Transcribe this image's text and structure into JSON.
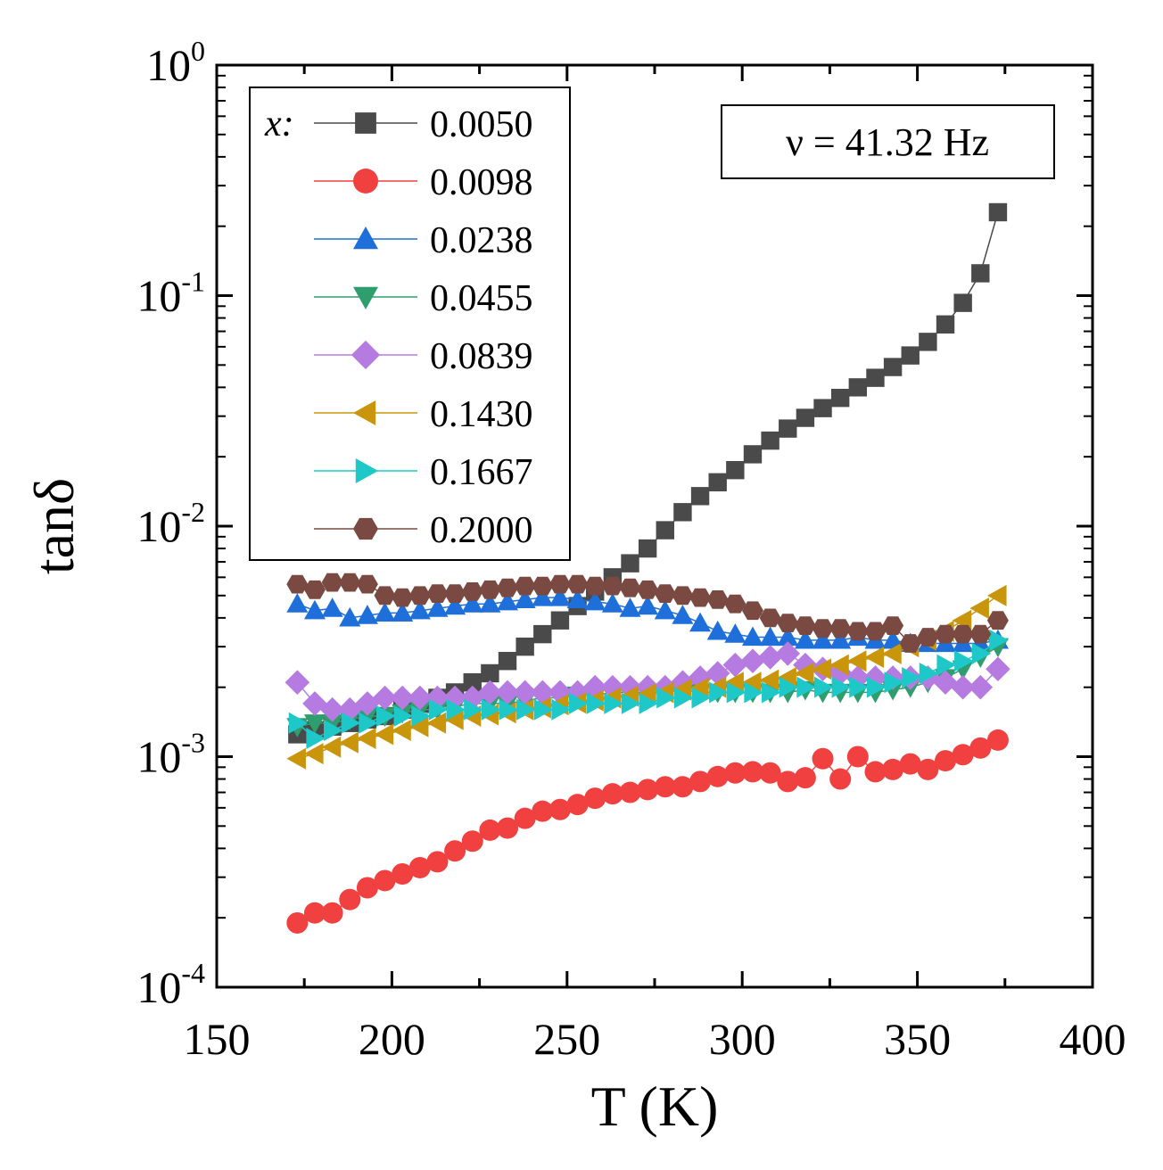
{
  "chart_data": {
    "type": "scatter",
    "title": "",
    "xlabel": "T  (K)",
    "ylabel": "tanδ",
    "xlim": [
      150,
      400
    ],
    "ylim": [
      0.0001,
      1
    ],
    "yscale": "log",
    "x_ticks": [
      "150",
      "200",
      "250",
      "300",
      "350",
      "400"
    ],
    "y_ticks": [
      {
        "base": "10",
        "exp": "-4"
      },
      {
        "base": "10",
        "exp": "-3"
      },
      {
        "base": "10",
        "exp": "-2"
      },
      {
        "base": "10",
        "exp": "-1"
      },
      {
        "base": "10",
        "exp": "0"
      }
    ],
    "legend_title": "x:",
    "legend_position": "top-left",
    "annotation": "ν = 41.32 Hz",
    "series": [
      {
        "name": "0.0050",
        "color": "#4a4a4a",
        "marker": "square",
        "x": [
          173,
          178,
          183,
          188,
          193,
          198,
          203,
          208,
          213,
          218,
          223,
          228,
          233,
          238,
          243,
          248,
          253,
          258,
          263,
          268,
          273,
          278,
          283,
          288,
          293,
          298,
          303,
          308,
          313,
          318,
          323,
          328,
          333,
          338,
          343,
          348,
          353,
          358,
          363,
          368,
          373
        ],
        "y": [
          0.00125,
          0.0013,
          0.00135,
          0.0014,
          0.00145,
          0.0015,
          0.0016,
          0.0017,
          0.0018,
          0.0019,
          0.0021,
          0.0023,
          0.0026,
          0.003,
          0.0034,
          0.0039,
          0.0045,
          0.0052,
          0.006,
          0.0069,
          0.008,
          0.0096,
          0.0115,
          0.0135,
          0.0155,
          0.0175,
          0.0205,
          0.0235,
          0.0265,
          0.0295,
          0.0325,
          0.036,
          0.04,
          0.044,
          0.049,
          0.055,
          0.063,
          0.075,
          0.093,
          0.125,
          0.23
        ]
      },
      {
        "name": "0.0098",
        "color": "#f04040",
        "marker": "circle",
        "x": [
          173,
          178,
          183,
          188,
          193,
          198,
          203,
          208,
          213,
          218,
          223,
          228,
          233,
          238,
          243,
          248,
          253,
          258,
          263,
          268,
          273,
          278,
          283,
          288,
          293,
          298,
          303,
          308,
          313,
          318,
          323,
          328,
          333,
          338,
          343,
          348,
          353,
          358,
          363,
          368,
          373
        ],
        "y": [
          0.00019,
          0.00021,
          0.00021,
          0.00024,
          0.00027,
          0.00029,
          0.00031,
          0.00033,
          0.00035,
          0.00039,
          0.00043,
          0.00048,
          0.00049,
          0.00054,
          0.00058,
          0.00059,
          0.00062,
          0.00066,
          0.00069,
          0.0007,
          0.00072,
          0.00074,
          0.00074,
          0.00078,
          0.00082,
          0.00085,
          0.00086,
          0.00085,
          0.00078,
          0.00081,
          0.00098,
          0.0008,
          0.001,
          0.00086,
          0.00088,
          0.00093,
          0.00088,
          0.00096,
          0.00102,
          0.00109,
          0.00118
        ]
      },
      {
        "name": "0.0238",
        "color": "#1e6fd9",
        "marker": "triangle-up",
        "x": [
          173,
          178,
          183,
          188,
          193,
          198,
          203,
          208,
          213,
          218,
          223,
          228,
          233,
          238,
          243,
          248,
          253,
          258,
          263,
          268,
          273,
          278,
          283,
          288,
          293,
          298,
          303,
          308,
          313,
          318,
          323,
          328,
          333,
          338,
          343,
          348,
          353,
          358,
          363,
          368,
          373
        ],
        "y": [
          0.0046,
          0.0043,
          0.0044,
          0.004,
          0.0041,
          0.0042,
          0.0042,
          0.0043,
          0.0044,
          0.0045,
          0.0046,
          0.0046,
          0.0047,
          0.0048,
          0.0049,
          0.0049,
          0.0048,
          0.0047,
          0.0046,
          0.0044,
          0.0045,
          0.0043,
          0.0041,
          0.0038,
          0.0035,
          0.0034,
          0.0033,
          0.0033,
          0.0033,
          0.0032,
          0.0032,
          0.0032,
          0.0033,
          0.0032,
          0.0032,
          0.0031,
          0.0031,
          0.0031,
          0.0031,
          0.0031,
          0.0032
        ]
      },
      {
        "name": "0.0455",
        "color": "#2e9e6e",
        "marker": "triangle-down",
        "x": [
          173,
          178,
          183,
          188,
          193,
          198,
          203,
          208,
          213,
          218,
          223,
          228,
          233,
          238,
          243,
          248,
          253,
          258,
          263,
          268,
          273,
          278,
          283,
          288,
          293,
          298,
          303,
          308,
          313,
          318,
          323,
          328,
          333,
          338,
          343,
          348,
          353,
          358,
          363,
          368,
          373
        ],
        "y": [
          0.00135,
          0.0014,
          0.0014,
          0.00145,
          0.0015,
          0.0015,
          0.00155,
          0.0016,
          0.0016,
          0.00165,
          0.0017,
          0.0017,
          0.0017,
          0.00175,
          0.0018,
          0.0018,
          0.00185,
          0.00185,
          0.0019,
          0.0019,
          0.0019,
          0.0019,
          0.00195,
          0.0019,
          0.0019,
          0.0019,
          0.0019,
          0.0019,
          0.0019,
          0.00195,
          0.0019,
          0.0019,
          0.0019,
          0.0019,
          0.00195,
          0.002,
          0.0021,
          0.0022,
          0.0024,
          0.0027,
          0.003
        ]
      },
      {
        "name": "0.0839",
        "color": "#b57be0",
        "marker": "diamond",
        "x": [
          173,
          178,
          183,
          188,
          193,
          198,
          203,
          208,
          213,
          218,
          223,
          228,
          233,
          238,
          243,
          248,
          253,
          258,
          263,
          268,
          273,
          278,
          283,
          288,
          293,
          298,
          303,
          308,
          313,
          318,
          323,
          328,
          333,
          338,
          343,
          348,
          353,
          358,
          363,
          368,
          373
        ],
        "y": [
          0.0021,
          0.0017,
          0.0016,
          0.0016,
          0.0017,
          0.0018,
          0.0018,
          0.0018,
          0.0018,
          0.0018,
          0.0018,
          0.0019,
          0.0019,
          0.0019,
          0.0019,
          0.0019,
          0.0019,
          0.002,
          0.002,
          0.002,
          0.002,
          0.002,
          0.0021,
          0.0022,
          0.0023,
          0.0025,
          0.0026,
          0.0027,
          0.0028,
          0.0025,
          0.0024,
          0.0023,
          0.0022,
          0.0022,
          0.0022,
          0.0022,
          0.0022,
          0.0021,
          0.002,
          0.002,
          0.0024
        ]
      },
      {
        "name": "0.1430",
        "color": "#c9950b",
        "marker": "triangle-left",
        "x": [
          173,
          178,
          183,
          188,
          193,
          198,
          203,
          208,
          213,
          218,
          223,
          228,
          233,
          238,
          243,
          248,
          253,
          258,
          263,
          268,
          273,
          278,
          283,
          288,
          293,
          298,
          303,
          308,
          313,
          318,
          323,
          328,
          333,
          338,
          343,
          348,
          353,
          358,
          363,
          368,
          373
        ],
        "y": [
          0.00098,
          0.00103,
          0.0011,
          0.00115,
          0.0012,
          0.00125,
          0.0013,
          0.00135,
          0.0014,
          0.00145,
          0.0015,
          0.00152,
          0.00155,
          0.0016,
          0.00163,
          0.00168,
          0.00171,
          0.00175,
          0.0018,
          0.00183,
          0.00187,
          0.0019,
          0.00195,
          0.00198,
          0.002,
          0.0021,
          0.0021,
          0.00215,
          0.0022,
          0.0023,
          0.0024,
          0.0025,
          0.0026,
          0.0027,
          0.0028,
          0.003,
          0.0032,
          0.0035,
          0.0039,
          0.0044,
          0.005
        ]
      },
      {
        "name": "0.1667",
        "color": "#1fc8c8",
        "marker": "triangle-right",
        "x": [
          173,
          178,
          183,
          188,
          193,
          198,
          203,
          208,
          213,
          218,
          223,
          228,
          233,
          238,
          243,
          248,
          253,
          258,
          263,
          268,
          273,
          278,
          283,
          288,
          293,
          298,
          303,
          308,
          313,
          318,
          323,
          328,
          333,
          338,
          343,
          348,
          353,
          358,
          363,
          368,
          373
        ],
        "y": [
          0.0014,
          0.0012,
          0.0013,
          0.0014,
          0.0014,
          0.0015,
          0.0015,
          0.0015,
          0.0016,
          0.0016,
          0.0016,
          0.0016,
          0.0016,
          0.0016,
          0.0016,
          0.0016,
          0.0017,
          0.0017,
          0.0017,
          0.0017,
          0.0017,
          0.0018,
          0.0018,
          0.0018,
          0.0019,
          0.0019,
          0.0019,
          0.0019,
          0.002,
          0.002,
          0.002,
          0.002,
          0.002,
          0.002,
          0.0021,
          0.0022,
          0.0023,
          0.0025,
          0.0026,
          0.0028,
          0.0032
        ]
      },
      {
        "name": "0.2000",
        "color": "#7a4a42",
        "marker": "hexagon",
        "x": [
          173,
          178,
          183,
          188,
          193,
          198,
          203,
          208,
          213,
          218,
          223,
          228,
          233,
          238,
          243,
          248,
          253,
          258,
          263,
          268,
          273,
          278,
          283,
          288,
          293,
          298,
          303,
          308,
          313,
          318,
          323,
          328,
          333,
          338,
          343,
          348,
          353,
          358,
          363,
          368,
          373
        ],
        "y": [
          0.0056,
          0.0053,
          0.0057,
          0.0057,
          0.0056,
          0.005,
          0.0049,
          0.005,
          0.0051,
          0.0051,
          0.0052,
          0.0053,
          0.0054,
          0.0055,
          0.0055,
          0.0056,
          0.0056,
          0.0055,
          0.0055,
          0.0054,
          0.0053,
          0.0051,
          0.005,
          0.0049,
          0.0048,
          0.0046,
          0.0043,
          0.004,
          0.0038,
          0.0037,
          0.0036,
          0.0036,
          0.0035,
          0.0035,
          0.0037,
          0.0031,
          0.0033,
          0.0034,
          0.0034,
          0.0034,
          0.0039
        ]
      }
    ]
  }
}
